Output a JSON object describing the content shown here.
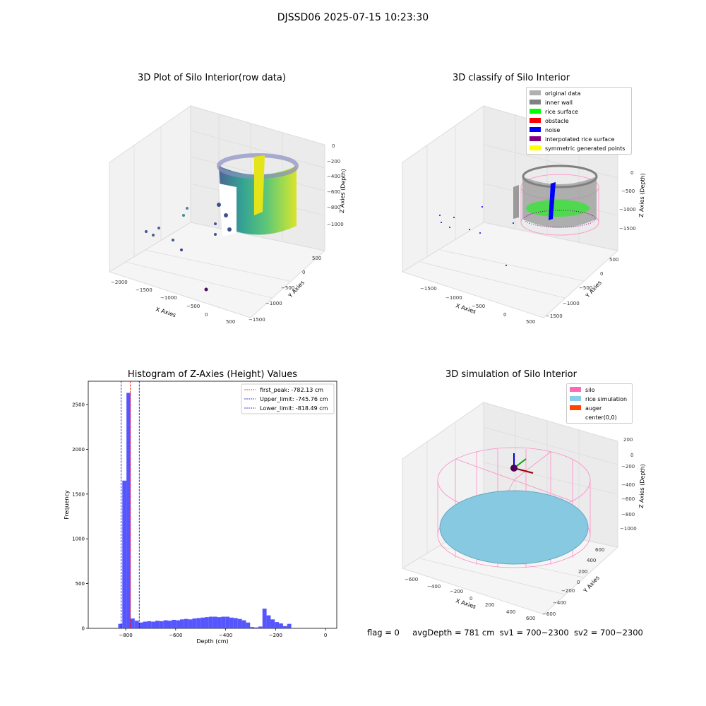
{
  "figure": {
    "title": "DJSSD06 2025-07-15 10:23:30",
    "footer": {
      "flag": "flag = 0",
      "avg_depth": "avgDepth = 781 cm",
      "sv1": "sv1 = 700~2300",
      "sv2": "sv2 = 700~2300"
    }
  },
  "colors": {
    "histogram_bar": "#4d4dff",
    "first_peak_line": "#ff0000",
    "limit_lines": "#0000cc",
    "silo_wire": "#ff69b4",
    "rice_simulation": "#87c9e0",
    "auger": "#ff4500",
    "original_data": "#b0b0b0",
    "inner_wall": "#808080",
    "rice_surface": "#00ff00",
    "obstacle": "#ff0000",
    "noise": "#0000ff",
    "interpolated_rice_surface": "#800080",
    "symmetric_generated_points": "#ffff00"
  },
  "chart_data": [
    {
      "type": "scatter",
      "title": "3D Plot of Silo Interior(row data)",
      "xlabel": "X Axies",
      "ylabel": "Y Axies",
      "zlabel": "Z Axies (Depth)",
      "x_ticks": [
        "−2000",
        "−1500",
        "−1000",
        "−500",
        "0",
        "500"
      ],
      "y_ticks": [
        "500",
        "0",
        "−500",
        "−1000",
        "−1500"
      ],
      "z_ticks": [
        "0",
        "−200",
        "−400",
        "−600",
        "−800",
        "−1000"
      ],
      "colormap": "viridis"
    },
    {
      "type": "scatter",
      "title": "3D classify of Silo Interior",
      "xlabel": "X Axies",
      "ylabel": "Y Axies",
      "zlabel": "Z Axies (Depth)",
      "x_ticks": [
        "−1500",
        "−1000",
        "−500",
        "0",
        "500"
      ],
      "y_ticks": [
        "500",
        "0",
        "−500",
        "−1000",
        "−1500"
      ],
      "z_ticks": [
        "0",
        "−500",
        "−1000",
        "−1500"
      ],
      "legend": [
        "original data",
        "inner wall",
        "rice surface",
        "obstacle",
        "noise",
        "interpolated rice surface",
        "symmetric generated points"
      ],
      "legend_placement": "top-right"
    },
    {
      "type": "bar",
      "title": "Histogram of Z-Axies (Height) Values",
      "xlabel": "Depth (cm)",
      "ylabel": "Frequency",
      "xlim": [
        -950,
        45
      ],
      "ylim": [
        0,
        2760
      ],
      "x_ticks": [
        -800,
        -600,
        -400,
        -200,
        0
      ],
      "y_ticks": [
        0,
        500,
        1000,
        1500,
        2000,
        2500
      ],
      "bin_start": -830,
      "bin_width": 16.5,
      "values": [
        50,
        1650,
        2630,
        110,
        85,
        65,
        75,
        80,
        75,
        85,
        80,
        90,
        85,
        95,
        90,
        100,
        105,
        100,
        110,
        115,
        120,
        125,
        130,
        130,
        125,
        130,
        130,
        120,
        115,
        105,
        90,
        65,
        15,
        10,
        20,
        220,
        145,
        100,
        70,
        55,
        25,
        50
      ],
      "reference_lines": [
        {
          "label": "first_peak: -782.13 cm",
          "x": -782.13,
          "color": "#ff0000"
        },
        {
          "label": "Upper_limit: -745.76 cm",
          "x": -745.76,
          "color": "#0000cc"
        },
        {
          "label": "Lower_limit: -818.49 cm",
          "x": -818.49,
          "color": "#0000cc"
        }
      ],
      "legend_placement": "top-right"
    },
    {
      "type": "scatter",
      "title": "3D simulation of Silo Interior",
      "xlabel": "X Axies",
      "ylabel": "Y Axies",
      "zlabel": "Z Axies (Depth)",
      "x_ticks": [
        "−600",
        "−400",
        "−200",
        "0",
        "200",
        "400",
        "600"
      ],
      "y_ticks": [
        "600",
        "400",
        "200",
        "0",
        "−200",
        "−400",
        "−600"
      ],
      "z_ticks": [
        "200",
        "0",
        "−200",
        "−400",
        "−600",
        "−800",
        "−1000"
      ],
      "legend": [
        "silo",
        "rice simulation",
        "auger",
        "center(0,0)"
      ],
      "legend_placement": "top-right"
    }
  ]
}
